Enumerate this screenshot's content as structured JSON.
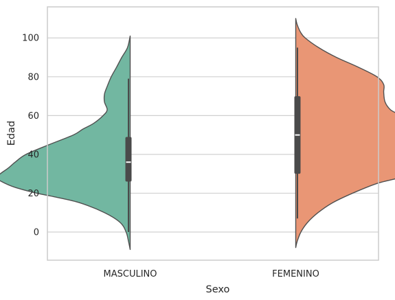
{
  "chart_data": {
    "type": "violin",
    "title": "",
    "xlabel": "Sexo",
    "ylabel": "Edad",
    "ylim": [
      -14.5,
      116
    ],
    "yticks": [
      0,
      20,
      40,
      60,
      80,
      100
    ],
    "grid": true,
    "split": true,
    "categories": [
      "MASCULINO",
      "FEMENINO"
    ],
    "series": [
      {
        "category": "MASCULINO",
        "side": "left",
        "color": "#72b7a1",
        "density_range": [
          -9,
          101
        ],
        "density": [
          [
            -9,
            0.0
          ],
          [
            -5,
            0.012
          ],
          [
            0,
            0.03
          ],
          [
            5,
            0.075
          ],
          [
            10,
            0.19
          ],
          [
            15,
            0.37
          ],
          [
            18,
            0.55
          ],
          [
            20,
            0.69
          ],
          [
            23,
            0.85
          ],
          [
            26,
            0.95
          ],
          [
            28,
            0.985
          ],
          [
            30,
            0.96
          ],
          [
            33,
            0.9
          ],
          [
            36,
            0.85
          ],
          [
            40,
            0.77
          ],
          [
            45,
            0.6
          ],
          [
            50,
            0.42
          ],
          [
            53,
            0.35
          ],
          [
            56,
            0.27
          ],
          [
            60,
            0.2
          ],
          [
            63,
            0.17
          ],
          [
            67,
            0.19
          ],
          [
            71,
            0.19
          ],
          [
            75,
            0.17
          ],
          [
            80,
            0.14
          ],
          [
            85,
            0.1
          ],
          [
            90,
            0.062
          ],
          [
            95,
            0.02
          ],
          [
            101,
            0.0
          ]
        ],
        "quartiles": [
          26,
          36,
          49
        ],
        "whiskers": [
          0,
          79
        ]
      },
      {
        "category": "FEMENINO",
        "side": "right",
        "color": "#e99675",
        "density_range": [
          -8,
          110
        ],
        "density": [
          [
            -8,
            0.0
          ],
          [
            -5,
            0.01
          ],
          [
            0,
            0.038
          ],
          [
            5,
            0.088
          ],
          [
            10,
            0.165
          ],
          [
            15,
            0.27
          ],
          [
            20,
            0.42
          ],
          [
            25,
            0.6
          ],
          [
            28,
            0.77
          ],
          [
            30,
            0.85
          ],
          [
            33,
            0.885
          ],
          [
            36,
            0.89
          ],
          [
            40,
            0.86
          ],
          [
            45,
            0.825
          ],
          [
            50,
            0.805
          ],
          [
            55,
            0.8
          ],
          [
            60,
            0.77
          ],
          [
            63,
            0.7
          ],
          [
            67,
            0.66
          ],
          [
            72,
            0.65
          ],
          [
            76,
            0.65
          ],
          [
            80,
            0.6
          ],
          [
            85,
            0.46
          ],
          [
            90,
            0.3
          ],
          [
            95,
            0.17
          ],
          [
            100,
            0.07
          ],
          [
            103,
            0.035
          ],
          [
            107,
            0.01
          ],
          [
            110,
            0.0
          ]
        ],
        "quartiles": [
          30,
          50,
          70
        ],
        "whiskers": [
          7,
          95
        ]
      }
    ]
  }
}
